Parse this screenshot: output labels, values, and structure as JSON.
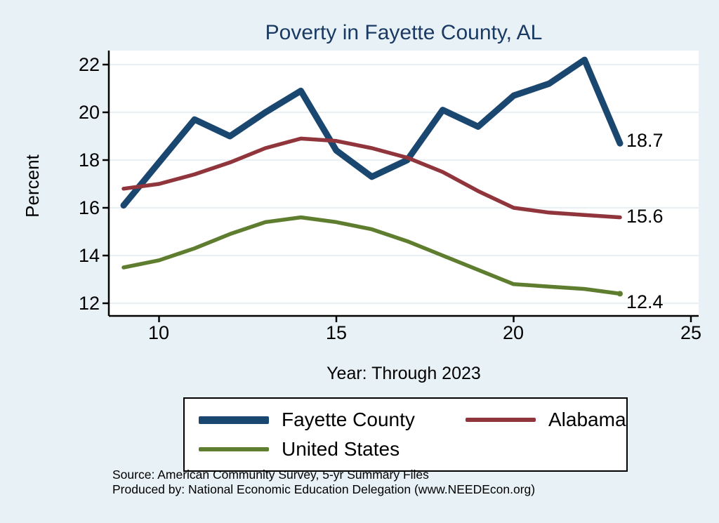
{
  "title": "Poverty in Fayette County, AL",
  "ylabel": "Percent",
  "xlabel": "Year: Through 2023",
  "end_labels": {
    "fayette": "18.7",
    "alabama": "15.6",
    "us": "12.4"
  },
  "legend": [
    {
      "label": "Fayette County",
      "color": "#1a476f"
    },
    {
      "label": "Alabama",
      "color": "#90353b"
    },
    {
      "label": "United States",
      "color": "#5f7d2f"
    }
  ],
  "source_line1": "Source: American Community Survey, 5-yr Summary Files",
  "source_line2": "Produced by: National Economic Education Delegation (www.NEEDEcon.org)",
  "colors": {
    "background": "#e8f2f6",
    "plot_bg": "#ffffff",
    "grid": "#d9e8ee",
    "axis": "#000000",
    "title": "#1a3a64"
  },
  "chart_data": {
    "type": "line",
    "title": "Poverty in Fayette County, AL",
    "xlabel": "Year: Through 2023",
    "ylabel": "Percent",
    "x": [
      9,
      10,
      11,
      12,
      13,
      14,
      15,
      16,
      17,
      18,
      19,
      20,
      21,
      22,
      23
    ],
    "series": [
      {
        "id": "fayette-county",
        "name": "Fayette County",
        "color": "#1a476f",
        "width": 9,
        "values": [
          16.1,
          17.9,
          19.7,
          19.0,
          20.0,
          20.9,
          18.4,
          17.3,
          18.0,
          20.1,
          19.4,
          20.7,
          21.2,
          22.2,
          18.7
        ],
        "end_label": "18.7"
      },
      {
        "id": "alabama",
        "name": "Alabama",
        "color": "#90353b",
        "width": 5.5,
        "values": [
          16.8,
          17.0,
          17.4,
          17.9,
          18.5,
          18.9,
          18.8,
          18.5,
          18.1,
          17.5,
          16.7,
          16.0,
          15.8,
          15.7,
          15.6
        ],
        "end_label": "15.6"
      },
      {
        "id": "united-states",
        "name": "United States",
        "color": "#5f7d2f",
        "width": 5.5,
        "values": [
          13.5,
          13.8,
          14.3,
          14.9,
          15.4,
          15.6,
          15.4,
          15.1,
          14.6,
          14.0,
          13.4,
          12.8,
          12.7,
          12.6,
          12.4
        ],
        "end_label": "12.4"
      }
    ],
    "xticks": [
      10,
      15,
      20,
      25
    ],
    "yticks": [
      12,
      14,
      16,
      18,
      20,
      22
    ],
    "xlim": [
      8.6,
      25.3
    ],
    "ylim": [
      11.5,
      22.6
    ],
    "grid": true,
    "legend_position": "bottom"
  }
}
